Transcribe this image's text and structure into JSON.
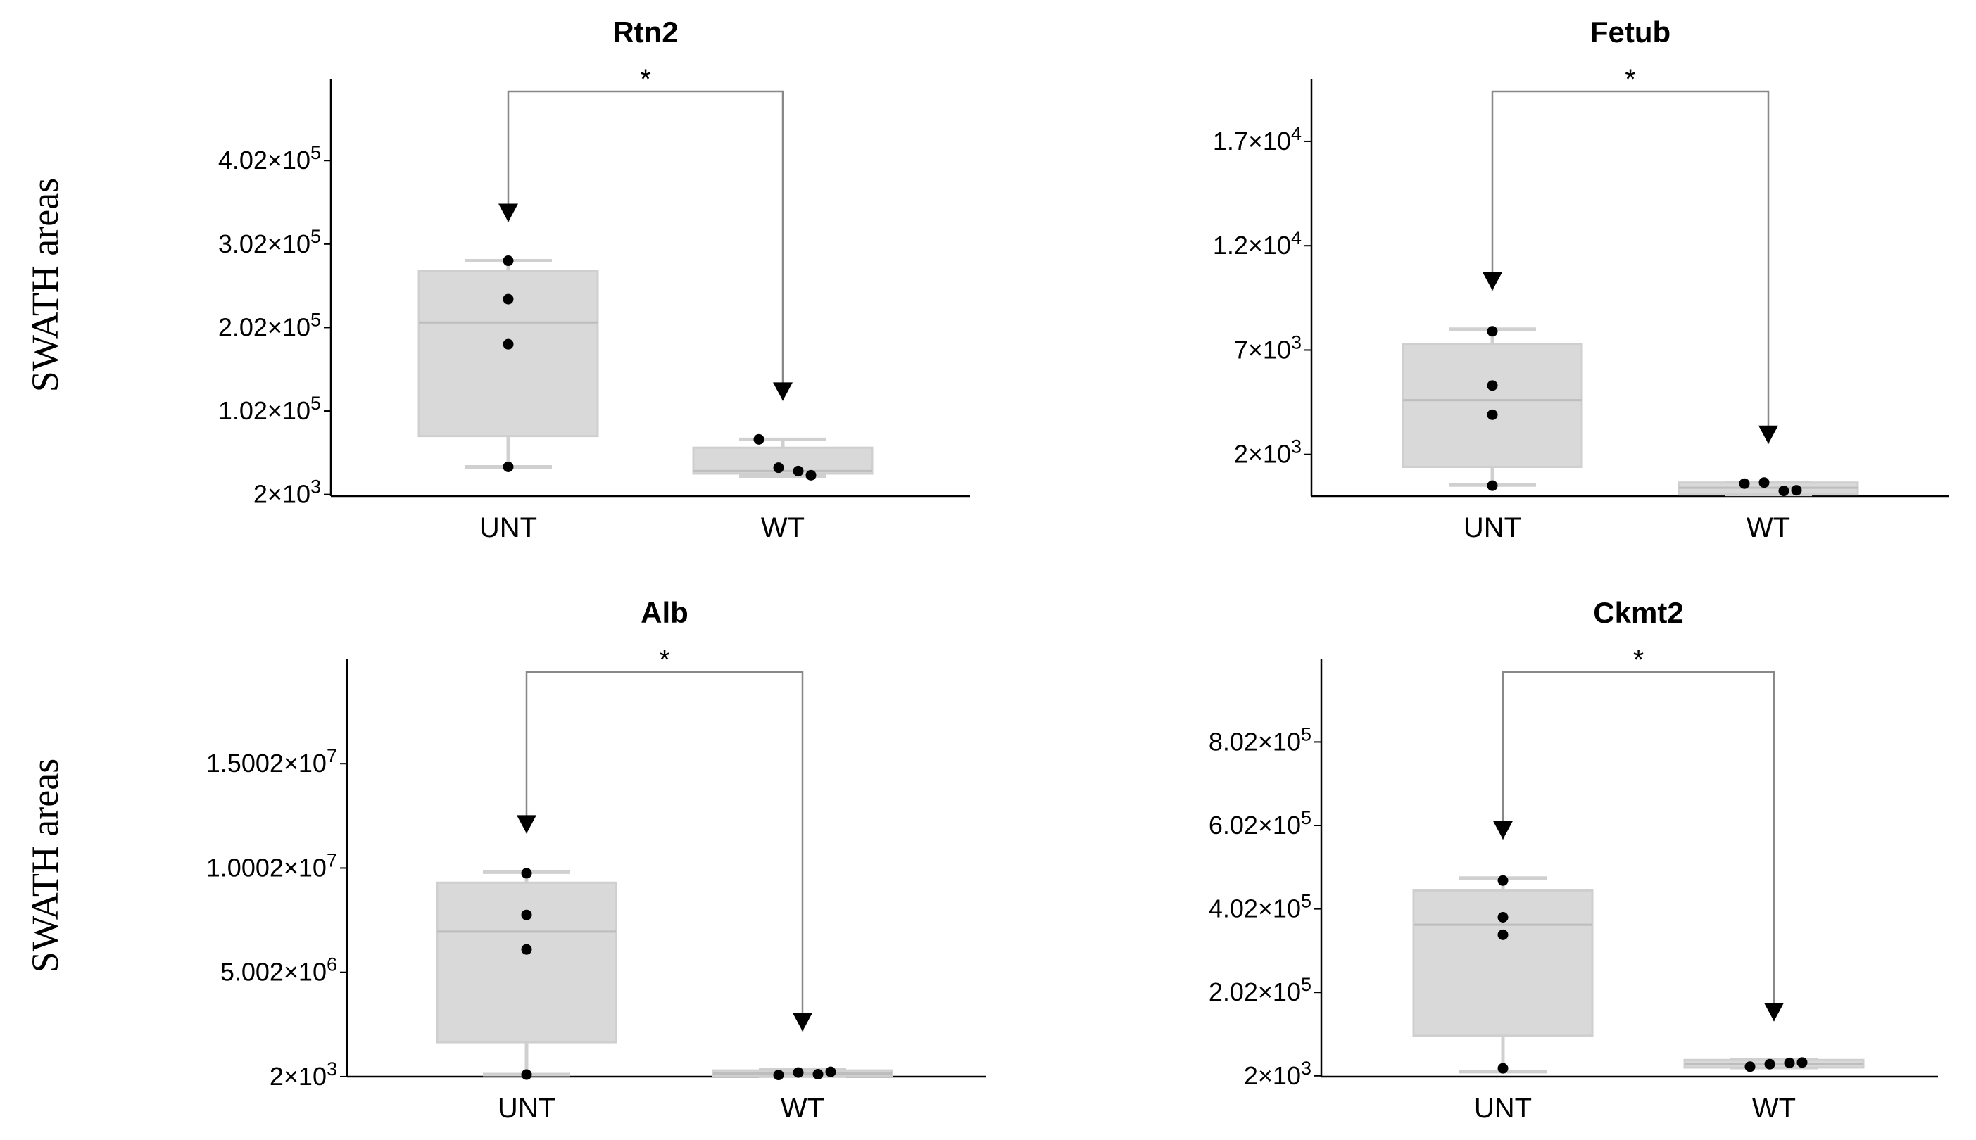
{
  "y_axis_label": "SWATH areas",
  "chart_data": [
    {
      "type": "box",
      "title": "Rtn2",
      "categories": [
        "UNT",
        "WT"
      ],
      "ylim": [
        0,
        500000
      ],
      "yticks": [
        {
          "value": 2000,
          "base": "2×10",
          "exp": "3"
        },
        {
          "value": 102000,
          "base": "1.02×10",
          "exp": "5"
        },
        {
          "value": 202000,
          "base": "2.02×10",
          "exp": "5"
        },
        {
          "value": 302000,
          "base": "3.02×10",
          "exp": "5"
        },
        {
          "value": 402000,
          "base": "4.02×10",
          "exp": "5"
        }
      ],
      "boxes": [
        {
          "group": "UNT",
          "min": 35000,
          "q1": 72000,
          "median": 208000,
          "q3": 270000,
          "max": 282000
        },
        {
          "group": "WT",
          "min": 24000,
          "q1": 27000,
          "median": 30000,
          "q3": 58000,
          "max": 68000
        }
      ],
      "points": [
        {
          "group": "UNT",
          "values": [
            282000,
            236000,
            182000,
            35000
          ]
        },
        {
          "group": "WT",
          "values": [
            68000,
            34000,
            30000,
            25000
          ]
        }
      ],
      "significance": "*"
    },
    {
      "type": "box",
      "title": "Fetub",
      "categories": [
        "UNT",
        "WT"
      ],
      "ylim": [
        0,
        20000
      ],
      "yticks": [
        {
          "value": 2000,
          "base": "2×10",
          "exp": "3"
        },
        {
          "value": 7000,
          "base": "7×10",
          "exp": "3"
        },
        {
          "value": 12000,
          "base": "1.2×10",
          "exp": "4"
        },
        {
          "value": 17000,
          "base": "1.7×10",
          "exp": "4"
        }
      ],
      "boxes": [
        {
          "group": "UNT",
          "min": 530,
          "q1": 1400,
          "median": 4600,
          "q3": 7300,
          "max": 8000
        },
        {
          "group": "WT",
          "min": 80,
          "q1": 80,
          "median": 400,
          "q3": 650,
          "max": 650
        }
      ],
      "points": [
        {
          "group": "UNT",
          "values": [
            7900,
            5300,
            3900,
            500
          ]
        },
        {
          "group": "WT",
          "values": [
            600,
            650,
            250,
            280
          ]
        }
      ],
      "significance": "*"
    },
    {
      "type": "box",
      "title": "Alb",
      "categories": [
        "UNT",
        "WT"
      ],
      "ylim": [
        0,
        20000000
      ],
      "yticks": [
        {
          "value": 2000,
          "base": "2×10",
          "exp": "3"
        },
        {
          "value": 5002000,
          "base": "5.002×10",
          "exp": "6"
        },
        {
          "value": 10002000,
          "base": "1.0002×10",
          "exp": "7"
        },
        {
          "value": 15002000,
          "base": "1.5002×10",
          "exp": "7"
        }
      ],
      "boxes": [
        {
          "group": "UNT",
          "min": 100000,
          "q1": 1650000,
          "median": 6950000,
          "q3": 9300000,
          "max": 9800000
        },
        {
          "group": "WT",
          "min": 20000,
          "q1": 30000,
          "median": 150000,
          "q3": 300000,
          "max": 320000
        }
      ],
      "points": [
        {
          "group": "UNT",
          "values": [
            9750000,
            7750000,
            6100000,
            100000
          ]
        },
        {
          "group": "WT",
          "values": [
            80000,
            200000,
            120000,
            230000
          ]
        }
      ],
      "significance": "*"
    },
    {
      "type": "box",
      "title": "Ckmt2",
      "categories": [
        "UNT",
        "WT"
      ],
      "ylim": [
        0,
        1000000
      ],
      "yticks": [
        {
          "value": 2000,
          "base": "2×10",
          "exp": "3"
        },
        {
          "value": 202000,
          "base": "2.02×10",
          "exp": "5"
        },
        {
          "value": 402000,
          "base": "4.02×10",
          "exp": "5"
        },
        {
          "value": 602000,
          "base": "6.02×10",
          "exp": "5"
        },
        {
          "value": 802000,
          "base": "8.02×10",
          "exp": "5"
        }
      ],
      "boxes": [
        {
          "group": "UNT",
          "min": 12000,
          "q1": 98000,
          "median": 364000,
          "q3": 446000,
          "max": 476000
        },
        {
          "group": "WT",
          "min": 22000,
          "q1": 22000,
          "median": 30000,
          "q3": 40000,
          "max": 40000
        }
      ],
      "points": [
        {
          "group": "UNT",
          "values": [
            470000,
            382000,
            340000,
            20000
          ]
        },
        {
          "group": "WT",
          "values": [
            24000,
            30000,
            33000,
            34000
          ]
        }
      ],
      "significance": "*"
    }
  ]
}
